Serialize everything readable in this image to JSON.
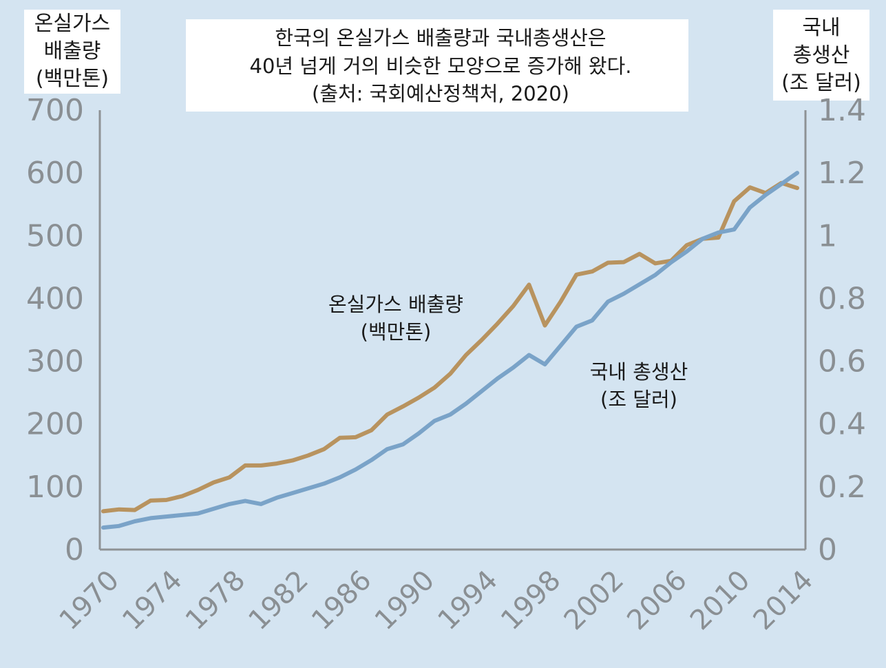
{
  "chart_data": {
    "type": "line",
    "title": [
      "한국의 온실가스 배출량과 국내총생산은",
      "40년 넘게 거의 비슷한 모양으로 증가해 왔다.",
      "(출처: 국회예산정책처, 2020)"
    ],
    "y_left_label": [
      "온실가스",
      "배출량",
      "(백만톤)"
    ],
    "y_right_label": [
      "국내",
      "총생산",
      "(조 달러)"
    ],
    "y_left_ticks": [
      "0",
      "100",
      "200",
      "300",
      "400",
      "500",
      "600",
      "700"
    ],
    "y_right_ticks": [
      "0",
      "0.2",
      "0.4",
      "0.6",
      "0.8",
      "1",
      "1.2",
      "1.4"
    ],
    "ylim_left": [
      0,
      700
    ],
    "ylim_right": [
      0,
      1.4
    ],
    "x_ticks": [
      "1970",
      "1974",
      "1978",
      "1982",
      "1986",
      "1990",
      "1994",
      "1998",
      "2002",
      "2006",
      "2010",
      "2014"
    ],
    "x": [
      1970,
      1971,
      1972,
      1973,
      1974,
      1975,
      1976,
      1977,
      1978,
      1979,
      1980,
      1981,
      1982,
      1983,
      1984,
      1985,
      1986,
      1987,
      1988,
      1989,
      1990,
      1991,
      1992,
      1993,
      1994,
      1995,
      1996,
      1997,
      1998,
      1999,
      2000,
      2001,
      2002,
      2003,
      2004,
      2005,
      2006,
      2007,
      2008,
      2009,
      2010,
      2011,
      2012,
      2013,
      2014
    ],
    "xlim": [
      1970,
      2014
    ],
    "series": [
      {
        "name": "온실가스 배출량",
        "label": [
          "온실가스 배출량",
          "(백만톤)"
        ],
        "axis": "left",
        "color": "#b8935f",
        "values": [
          61,
          64,
          63,
          78,
          79,
          85,
          95,
          107,
          115,
          134,
          134,
          137,
          142,
          150,
          160,
          178,
          179,
          190,
          215,
          228,
          242,
          258,
          280,
          310,
          334,
          360,
          388,
          422,
          357,
          395,
          438,
          443,
          457,
          458,
          471,
          456,
          460,
          485,
          495,
          497,
          555,
          577,
          568,
          584,
          576
        ]
      },
      {
        "name": "국내 총생산",
        "label": [
          "국내 총생산",
          "(조 달러)"
        ],
        "axis": "right",
        "color": "#7aa3c8",
        "values": [
          0.07,
          0.075,
          0.09,
          0.1,
          0.105,
          0.11,
          0.115,
          0.13,
          0.145,
          0.155,
          0.145,
          0.165,
          0.18,
          0.195,
          0.21,
          0.23,
          0.255,
          0.285,
          0.32,
          0.335,
          0.37,
          0.41,
          0.43,
          0.465,
          0.505,
          0.545,
          0.58,
          0.62,
          0.59,
          0.65,
          0.71,
          0.73,
          0.79,
          0.815,
          0.845,
          0.875,
          0.915,
          0.95,
          0.99,
          1.01,
          1.02,
          1.09,
          1.13,
          1.165,
          1.2
        ]
      }
    ]
  },
  "colors": {
    "plot_bg": "#d4e4f1",
    "axis": "#8e9295",
    "note_bg": "#ffffff"
  }
}
